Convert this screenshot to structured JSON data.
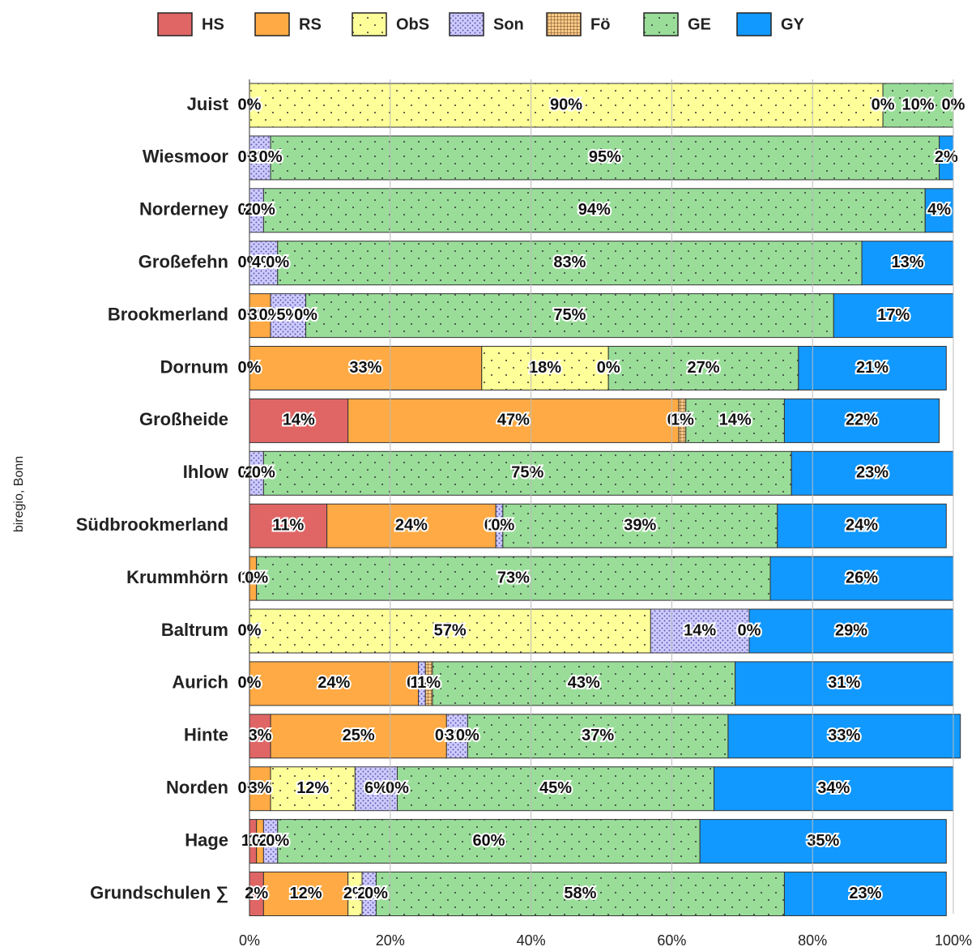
{
  "chart_data": {
    "type": "stacked-barh",
    "y_label": "biregio, Bonn",
    "categories": [
      "Juist",
      "Wiesmoor",
      "Norderney",
      "Großefehn",
      "Brookmerland",
      "Dornum",
      "Großheide",
      "Ihlow",
      "Südbrookmerland",
      "Krummhörn",
      "Baltrum",
      "Aurich",
      "Hinte",
      "Norden",
      "Hage",
      "Grundschulen ∑"
    ],
    "series": [
      {
        "name": "HS",
        "color": "#e06666",
        "pattern": "none",
        "values": [
          0,
          0,
          0,
          0,
          0,
          0,
          14,
          0,
          11,
          0,
          0,
          0,
          3,
          0,
          1,
          2
        ],
        "value_labels": [
          "0%",
          "0%",
          "0%",
          "0%",
          "0%",
          "0%",
          "14%",
          "0%",
          "11%",
          "0%",
          "0%",
          "0%",
          "3%",
          "0%",
          "1%",
          "2%"
        ]
      },
      {
        "name": "RS",
        "color": "#ffaa44",
        "pattern": "none",
        "values": [
          0,
          0,
          0,
          0,
          3,
          33,
          47,
          0,
          24,
          1,
          0,
          24,
          25,
          3,
          1,
          12
        ],
        "value_labels": [
          "0%",
          "0%",
          "0%",
          "0%",
          "3%",
          "33%",
          "47%",
          "0%",
          "24%",
          "1%",
          "0%",
          "24%",
          "25%",
          "3%",
          "1%",
          "12%"
        ]
      },
      {
        "name": "ObS",
        "color": "#ffff99",
        "pattern": "dots",
        "values": [
          90,
          0,
          0,
          0,
          0,
          18,
          0,
          0,
          0,
          0,
          57,
          0,
          0,
          12,
          0,
          2
        ],
        "value_labels": [
          "90%",
          "0%",
          "0%",
          "0%",
          "0%",
          "18%",
          "0%",
          "0%",
          "0%",
          "0%",
          "57%",
          "0%",
          "0%",
          "12%",
          "0%",
          "2%"
        ]
      },
      {
        "name": "Son",
        "color": "#ccccff",
        "pattern": "dense",
        "values": [
          0,
          3,
          2,
          4,
          5,
          0,
          0,
          2,
          1,
          0,
          14,
          1,
          3,
          6,
          2,
          2
        ],
        "value_labels": [
          "0%",
          "3%",
          "2%",
          "4%",
          "5%",
          "0%",
          "0%",
          "2%",
          "1%",
          "0%",
          "14%",
          "1%",
          "3%",
          "6%",
          "2%",
          "2%"
        ]
      },
      {
        "name": "Fö",
        "color": "#ffcc88",
        "pattern": "grid",
        "values": [
          0,
          0,
          0,
          0,
          0,
          0,
          1,
          0,
          0,
          0,
          0,
          1,
          0,
          0,
          0,
          0
        ],
        "value_labels": [
          "0%",
          "0%",
          "0%",
          "0%",
          "0%",
          "0%",
          "1%",
          "0%",
          "0%",
          "0%",
          "0%",
          "1%",
          "0%",
          "0%",
          "0%",
          "0%"
        ]
      },
      {
        "name": "GE",
        "color": "#99dd99",
        "pattern": "dots",
        "values": [
          10,
          95,
          94,
          83,
          75,
          27,
          14,
          75,
          39,
          73,
          0,
          43,
          37,
          45,
          60,
          58
        ],
        "value_labels": [
          "10%",
          "95%",
          "94%",
          "83%",
          "75%",
          "27%",
          "14%",
          "75%",
          "39%",
          "73%",
          "0%",
          "43%",
          "37%",
          "45%",
          "60%",
          "58%"
        ]
      },
      {
        "name": "GY",
        "color": "#1199ff",
        "pattern": "none",
        "values": [
          0,
          2,
          4,
          13,
          17,
          21,
          22,
          23,
          24,
          26,
          29,
          31,
          33,
          34,
          35,
          23
        ],
        "value_labels": [
          "0%",
          "2%",
          "4%",
          "13%",
          "17%",
          "21%",
          "22%",
          "23%",
          "24%",
          "26%",
          "29%",
          "31%",
          "33%",
          "34%",
          "35%",
          "23%"
        ]
      }
    ],
    "xlim": [
      0,
      100
    ],
    "xticks": [
      {
        "value": 0,
        "label": "0%"
      },
      {
        "value": 20,
        "label": "20%"
      },
      {
        "value": 40,
        "label": "40%"
      },
      {
        "value": 60,
        "label": "60%"
      },
      {
        "value": 80,
        "label": "80%"
      },
      {
        "value": 100,
        "label": "100%"
      }
    ],
    "grid": true,
    "legend": "top"
  }
}
